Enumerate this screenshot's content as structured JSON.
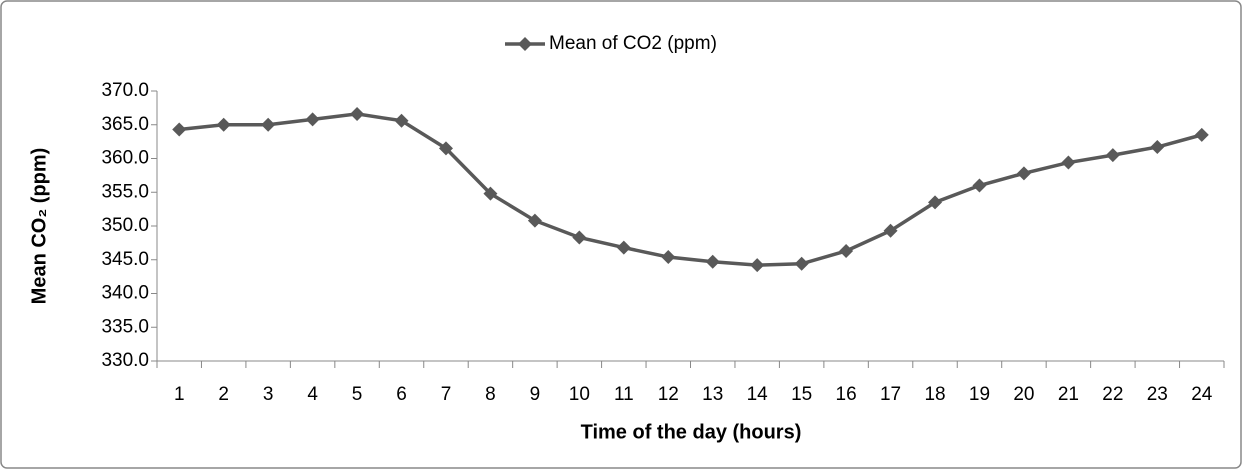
{
  "chart_data": {
    "type": "line",
    "legend": "top",
    "x_label": "Time of the day (hours)",
    "y_label": "Mean CO₂ (ppm)",
    "categories": [
      "1",
      "2",
      "3",
      "4",
      "5",
      "6",
      "7",
      "8",
      "9",
      "10",
      "11",
      "12",
      "13",
      "14",
      "15",
      "16",
      "17",
      "18",
      "19",
      "20",
      "21",
      "22",
      "23",
      "24"
    ],
    "series": [
      {
        "name": "Mean of CO2 (ppm)",
        "color": "#595959",
        "values": [
          364.3,
          365.0,
          365.0,
          365.8,
          366.6,
          365.6,
          361.5,
          354.8,
          350.8,
          348.3,
          346.8,
          345.4,
          344.7,
          344.2,
          344.4,
          346.3,
          349.3,
          353.5,
          356.0,
          357.8,
          359.4,
          360.5,
          361.7,
          363.5
        ]
      }
    ],
    "ylim": [
      330,
      370
    ],
    "yticks": [
      {
        "value": 330,
        "label": "330.0"
      },
      {
        "value": 335,
        "label": "335.0"
      },
      {
        "value": 340,
        "label": "340.0"
      },
      {
        "value": 345,
        "label": "345.0"
      },
      {
        "value": 350,
        "label": "350.0"
      },
      {
        "value": 355,
        "label": "355.0"
      },
      {
        "value": 360,
        "label": "360.0"
      },
      {
        "value": 365,
        "label": "365.0"
      },
      {
        "value": 370,
        "label": "370.0"
      }
    ],
    "grid": false
  }
}
